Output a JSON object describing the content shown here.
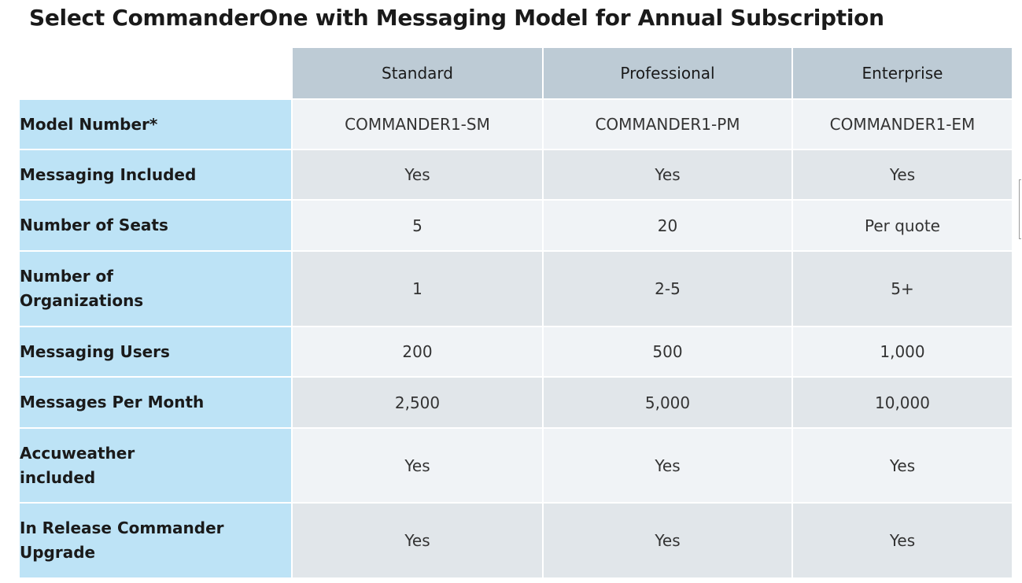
{
  "title": "Select CommanderOne with Messaging Model for Annual Subscription",
  "table": {
    "columns": [
      "Standard",
      "Professional",
      "Enterprise"
    ],
    "rows": [
      {
        "label": "Model Number*",
        "values": [
          "COMMANDER1-SM",
          "COMMANDER1-PM",
          "COMMANDER1-EM"
        ]
      },
      {
        "label": "Messaging Included",
        "values": [
          "Yes",
          "Yes",
          "Yes"
        ]
      },
      {
        "label": "Number of Seats",
        "values": [
          "5",
          "20",
          "Per quote"
        ]
      },
      {
        "label_lines": [
          "Number of",
          "Organizations"
        ],
        "values": [
          "1",
          "2-5",
          "5+"
        ]
      },
      {
        "label": "Messaging Users",
        "values": [
          "200",
          "500",
          "1,000"
        ]
      },
      {
        "label": "Messages Per Month",
        "values": [
          "2,500",
          "5,000",
          "10,000"
        ]
      },
      {
        "label_lines": [
          "Accuweather",
          "included"
        ],
        "values": [
          "Yes",
          "Yes",
          "Yes"
        ]
      },
      {
        "label_lines": [
          "In Release Commander",
          "Upgrade"
        ],
        "values": [
          "Yes",
          "Yes",
          "Yes"
        ]
      }
    ]
  },
  "colors": {
    "header_bg": "#bdcbd5",
    "row_label_bg": "#bde3f6",
    "row_light_bg": "#f0f3f6",
    "row_dark_bg": "#e1e6ea"
  }
}
